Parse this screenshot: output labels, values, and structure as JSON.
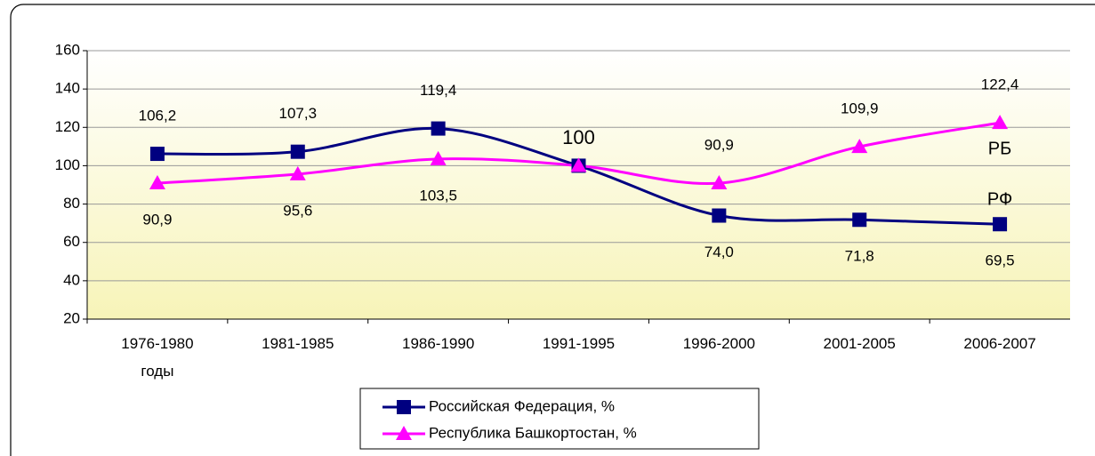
{
  "chart_data": {
    "type": "line",
    "categories": [
      "1976-1980\nгоды",
      "1981-1985",
      "1986-1990",
      "1991-1995",
      "1996-2000",
      "2001-2005",
      "2006-2007"
    ],
    "series": [
      {
        "name": "Российская Федерация, %",
        "color": "#000080",
        "marker": "square",
        "values": [
          106.2,
          107.3,
          119.4,
          100,
          74.0,
          71.8,
          69.5
        ],
        "value_labels": [
          "106,2",
          "107,3",
          "119,4",
          "100",
          "74,0",
          "71,8",
          "69,5"
        ]
      },
      {
        "name": "Республика Башкортостан, %",
        "color": "#ff00ff",
        "marker": "triangle",
        "values": [
          90.9,
          95.6,
          103.5,
          100,
          90.9,
          109.9,
          122.4
        ],
        "value_labels": [
          "90,9",
          "95,6",
          "103,5",
          null,
          "90,9",
          "109,9",
          "122,4"
        ]
      }
    ],
    "annotations": [
      "РБ",
      "РФ"
    ],
    "ylim": [
      20,
      160
    ],
    "yticks": [
      20,
      40,
      60,
      80,
      100,
      120,
      140,
      160
    ],
    "grid": true,
    "legend": "bottom"
  }
}
